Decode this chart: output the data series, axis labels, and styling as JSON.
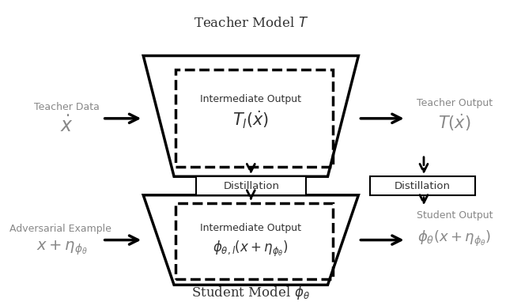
{
  "bg_color": "#ffffff",
  "text_color_dark": "#333333",
  "text_color_gray": "#888888",
  "teacher_model_label": "Teacher Model $\\mathit{T}$",
  "student_model_label": "Student Model $\\phi_{\\theta}$",
  "teacher_data_label1": "Teacher Data",
  "teacher_data_label2": "$\\dot{x}$",
  "adversarial_label1": "Adversarial Example",
  "adversarial_label2": "$x + \\eta_{\\phi_{\\theta}}$",
  "teacher_output_label1": "Teacher Output",
  "teacher_output_label2": "$T(\\dot{x})$",
  "student_output_label1": "Student Output",
  "student_output_label2": "$\\phi_{\\theta}(x + \\eta_{\\phi_{\\theta}})$",
  "distillation_label": "Distillation",
  "intermediate_output_label": "Intermediate Output",
  "teacher_intermediate_math": "$T_l(\\dot{x})$",
  "student_intermediate_math": "$\\phi_{\\theta,l}(x + \\eta_{\\phi_{\\theta}})$"
}
